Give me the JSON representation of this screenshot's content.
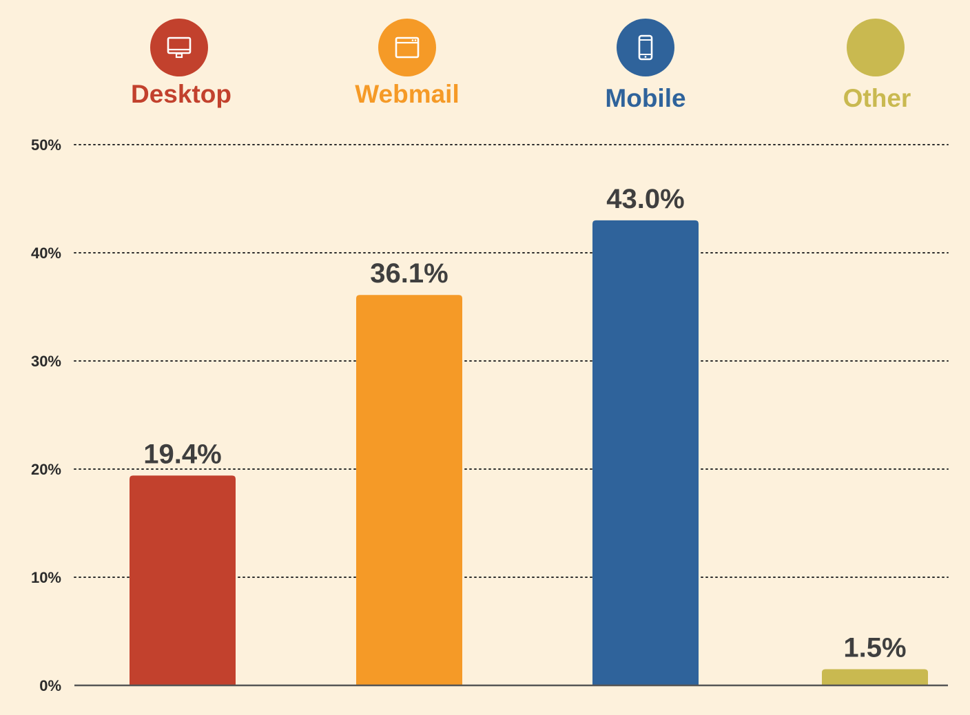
{
  "chart_data": {
    "type": "bar",
    "categories": [
      "Desktop",
      "Webmail",
      "Mobile",
      "Other"
    ],
    "values": [
      19.4,
      36.1,
      43.0,
      1.5
    ],
    "value_labels": [
      "19.4%",
      "36.1%",
      "43.0%",
      "1.5%"
    ],
    "colors": [
      "#c2412d",
      "#f59a27",
      "#2f639b",
      "#c9b950"
    ],
    "category_icons": [
      "desktop-monitor-icon",
      "browser-window-icon",
      "smartphone-icon",
      ""
    ],
    "title": "",
    "xlabel": "",
    "ylabel": "",
    "ylim": [
      0,
      50
    ],
    "yticks": [
      0,
      10,
      20,
      30,
      40,
      50
    ],
    "ytick_labels": [
      "0%",
      "10%",
      "20%",
      "30%",
      "40%",
      "50%"
    ],
    "grid": "dotted horizontal",
    "legend": "category labels with icons above plot"
  }
}
